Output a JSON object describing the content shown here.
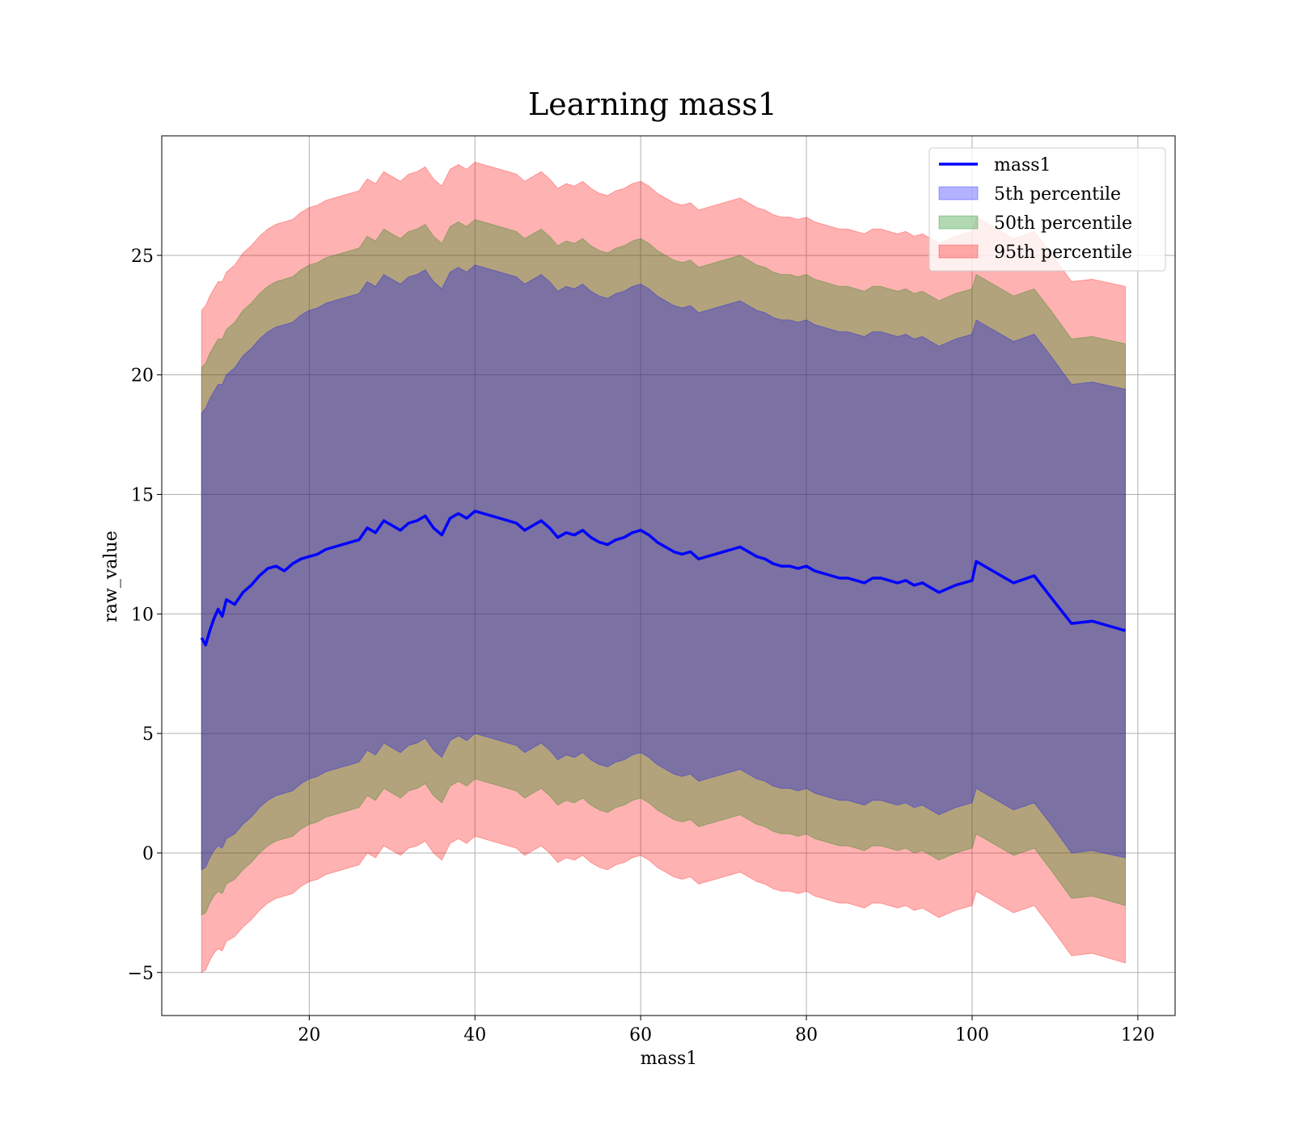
{
  "chart_data": {
    "type": "area",
    "title": "Learning mass1",
    "xlabel": "mass1",
    "ylabel": "raw_value",
    "xlim": [
      2.2,
      124.5
    ],
    "ylim": [
      -6.8,
      30.0
    ],
    "xticks": [
      20,
      40,
      60,
      80,
      100,
      120
    ],
    "xtick_labels": [
      "20",
      "40",
      "60",
      "80",
      "100",
      "120"
    ],
    "yticks": [
      -5,
      0,
      5,
      10,
      15,
      20,
      25
    ],
    "ytick_labels": [
      "−5",
      "0",
      "5",
      "10",
      "15",
      "20",
      "25"
    ],
    "grid": true,
    "legend_position": "top-right",
    "x": [
      7.0,
      7.5,
      8.0,
      8.5,
      9.0,
      9.5,
      10.0,
      11.0,
      12.0,
      13.0,
      14.0,
      15.0,
      16.0,
      17.0,
      18.0,
      19.0,
      20.0,
      21.0,
      22.0,
      23.0,
      24.0,
      25.0,
      26.0,
      27.0,
      28.0,
      29.0,
      30.0,
      31.0,
      32.0,
      33.0,
      34.0,
      35.0,
      36.0,
      37.0,
      38.0,
      39.0,
      40.0,
      41.0,
      42.0,
      43.0,
      44.0,
      45.0,
      46.0,
      47.0,
      48.0,
      49.0,
      50.0,
      51.0,
      52.0,
      53.0,
      54.0,
      55.0,
      56.0,
      57.0,
      58.0,
      59.0,
      60.0,
      61.0,
      62.0,
      63.0,
      64.0,
      65.0,
      66.0,
      67.0,
      68.0,
      69.0,
      70.0,
      71.0,
      72.0,
      73.0,
      74.0,
      75.0,
      76.0,
      77.0,
      78.0,
      79.0,
      80.0,
      81.0,
      82.0,
      83.0,
      84.0,
      85.0,
      86.0,
      87.0,
      88.0,
      89.0,
      90.0,
      91.0,
      92.0,
      93.0,
      94.0,
      96.0,
      98.0,
      100.0,
      100.5,
      102.5,
      105.0,
      107.5,
      109.5,
      112.0,
      114.5,
      118.5
    ],
    "series": [
      {
        "name": "mass1",
        "color": "#0000ff",
        "values": [
          9.0,
          8.7,
          9.3,
          9.8,
          10.2,
          9.9,
          10.6,
          10.4,
          10.9,
          11.2,
          11.6,
          11.9,
          12.0,
          11.8,
          12.1,
          12.3,
          12.4,
          12.5,
          12.7,
          12.8,
          12.9,
          13.0,
          13.1,
          13.6,
          13.4,
          13.9,
          13.7,
          13.5,
          13.8,
          13.9,
          14.1,
          13.6,
          13.3,
          14.0,
          14.2,
          14.0,
          14.3,
          14.2,
          14.1,
          14.0,
          13.9,
          13.8,
          13.5,
          13.7,
          13.9,
          13.6,
          13.2,
          13.4,
          13.3,
          13.5,
          13.2,
          13.0,
          12.9,
          13.1,
          13.2,
          13.4,
          13.5,
          13.3,
          13.0,
          12.8,
          12.6,
          12.5,
          12.6,
          12.3,
          12.4,
          12.5,
          12.6,
          12.7,
          12.8,
          12.6,
          12.4,
          12.3,
          12.1,
          12.0,
          12.0,
          11.9,
          12.0,
          11.8,
          11.7,
          11.6,
          11.5,
          11.5,
          11.4,
          11.3,
          11.5,
          11.5,
          11.4,
          11.3,
          11.4,
          11.2,
          11.3,
          10.9,
          11.2,
          11.4,
          12.2,
          11.8,
          11.3,
          11.6,
          10.7,
          9.6,
          9.7,
          9.3
        ]
      },
      {
        "name": "5th percentile",
        "color": "#0000ff",
        "lower": [
          -0.7,
          -0.6,
          -0.2,
          0.1,
          0.3,
          0.2,
          0.6,
          0.8,
          1.2,
          1.5,
          1.9,
          2.2,
          2.4,
          2.5,
          2.6,
          2.9,
          3.1,
          3.2,
          3.4,
          3.5,
          3.6,
          3.7,
          3.8,
          4.3,
          4.1,
          4.6,
          4.4,
          4.2,
          4.5,
          4.6,
          4.8,
          4.3,
          4.0,
          4.7,
          4.9,
          4.7,
          5.0,
          4.9,
          4.8,
          4.7,
          4.6,
          4.5,
          4.2,
          4.4,
          4.6,
          4.3,
          3.9,
          4.1,
          4.0,
          4.2,
          3.9,
          3.7,
          3.6,
          3.8,
          3.9,
          4.1,
          4.2,
          4.0,
          3.7,
          3.5,
          3.3,
          3.2,
          3.3,
          3.0,
          3.1,
          3.2,
          3.3,
          3.4,
          3.5,
          3.3,
          3.1,
          3.0,
          2.8,
          2.7,
          2.7,
          2.6,
          2.7,
          2.5,
          2.4,
          2.3,
          2.2,
          2.2,
          2.1,
          2.0,
          2.2,
          2.2,
          2.1,
          2.0,
          2.1,
          1.9,
          2.0,
          1.6,
          1.9,
          2.1,
          2.7,
          2.3,
          1.8,
          2.1,
          1.2,
          0.0,
          0.1,
          -0.2
        ],
        "upper": [
          18.4,
          18.6,
          19.0,
          19.3,
          19.6,
          19.6,
          20.0,
          20.3,
          20.8,
          21.1,
          21.5,
          21.8,
          22.0,
          22.1,
          22.2,
          22.5,
          22.7,
          22.8,
          23.0,
          23.1,
          23.2,
          23.3,
          23.4,
          23.9,
          23.7,
          24.2,
          24.0,
          23.8,
          24.1,
          24.2,
          24.4,
          23.9,
          23.6,
          24.3,
          24.5,
          24.3,
          24.6,
          24.5,
          24.4,
          24.3,
          24.2,
          24.1,
          23.8,
          24.0,
          24.2,
          23.9,
          23.5,
          23.7,
          23.6,
          23.8,
          23.5,
          23.3,
          23.2,
          23.4,
          23.5,
          23.7,
          23.8,
          23.6,
          23.3,
          23.1,
          22.9,
          22.8,
          22.9,
          22.6,
          22.7,
          22.8,
          22.9,
          23.0,
          23.1,
          22.9,
          22.7,
          22.6,
          22.4,
          22.3,
          22.3,
          22.2,
          22.3,
          22.1,
          22.0,
          21.9,
          21.8,
          21.8,
          21.7,
          21.6,
          21.8,
          21.8,
          21.7,
          21.6,
          21.7,
          21.5,
          21.6,
          21.2,
          21.5,
          21.7,
          22.3,
          21.9,
          21.4,
          21.7,
          20.8,
          19.6,
          19.7,
          19.4
        ]
      },
      {
        "name": "50th percentile",
        "color": "#008000",
        "lower": [
          -2.6,
          -2.5,
          -2.1,
          -1.8,
          -1.6,
          -1.7,
          -1.3,
          -1.1,
          -0.7,
          -0.4,
          0.0,
          0.3,
          0.5,
          0.6,
          0.7,
          1.0,
          1.2,
          1.3,
          1.5,
          1.6,
          1.7,
          1.8,
          1.9,
          2.4,
          2.2,
          2.7,
          2.5,
          2.3,
          2.6,
          2.7,
          2.9,
          2.4,
          2.1,
          2.8,
          3.0,
          2.8,
          3.1,
          3.0,
          2.9,
          2.8,
          2.7,
          2.6,
          2.3,
          2.5,
          2.7,
          2.4,
          2.0,
          2.2,
          2.1,
          2.3,
          2.0,
          1.8,
          1.7,
          1.9,
          2.0,
          2.2,
          2.3,
          2.1,
          1.8,
          1.6,
          1.4,
          1.3,
          1.4,
          1.1,
          1.2,
          1.3,
          1.4,
          1.5,
          1.6,
          1.4,
          1.2,
          1.1,
          0.9,
          0.8,
          0.8,
          0.7,
          0.8,
          0.6,
          0.5,
          0.4,
          0.3,
          0.3,
          0.2,
          0.1,
          0.3,
          0.3,
          0.2,
          0.1,
          0.2,
          0.0,
          0.1,
          -0.3,
          0.0,
          0.2,
          0.8,
          0.4,
          -0.1,
          0.2,
          -0.7,
          -1.9,
          -1.8,
          -2.2
        ],
        "upper": [
          20.3,
          20.5,
          20.9,
          21.2,
          21.5,
          21.5,
          21.9,
          22.2,
          22.7,
          23.0,
          23.4,
          23.7,
          23.9,
          24.0,
          24.1,
          24.4,
          24.6,
          24.7,
          24.9,
          25.0,
          25.1,
          25.2,
          25.3,
          25.8,
          25.6,
          26.1,
          25.9,
          25.7,
          26.0,
          26.1,
          26.3,
          25.8,
          25.5,
          26.2,
          26.4,
          26.2,
          26.5,
          26.4,
          26.3,
          26.2,
          26.1,
          26.0,
          25.7,
          25.9,
          26.1,
          25.8,
          25.4,
          25.6,
          25.5,
          25.7,
          25.4,
          25.2,
          25.1,
          25.3,
          25.4,
          25.6,
          25.7,
          25.5,
          25.2,
          25.0,
          24.8,
          24.7,
          24.8,
          24.5,
          24.6,
          24.7,
          24.8,
          24.9,
          25.0,
          24.8,
          24.6,
          24.5,
          24.3,
          24.2,
          24.2,
          24.1,
          24.2,
          24.0,
          23.9,
          23.8,
          23.7,
          23.7,
          23.6,
          23.5,
          23.7,
          23.7,
          23.6,
          23.5,
          23.6,
          23.4,
          23.5,
          23.1,
          23.4,
          23.6,
          24.2,
          23.8,
          23.3,
          23.6,
          22.7,
          21.5,
          21.6,
          21.3
        ]
      },
      {
        "name": "95th percentile",
        "color": "#ff0000",
        "lower": [
          -5.0,
          -4.9,
          -4.5,
          -4.2,
          -4.0,
          -4.1,
          -3.7,
          -3.5,
          -3.1,
          -2.8,
          -2.4,
          -2.1,
          -1.9,
          -1.8,
          -1.7,
          -1.4,
          -1.2,
          -1.1,
          -0.9,
          -0.8,
          -0.7,
          -0.6,
          -0.5,
          0.0,
          -0.2,
          0.3,
          0.1,
          -0.1,
          0.2,
          0.3,
          0.5,
          0.0,
          -0.3,
          0.4,
          0.6,
          0.4,
          0.7,
          0.6,
          0.5,
          0.4,
          0.3,
          0.2,
          -0.1,
          0.1,
          0.3,
          0.0,
          -0.4,
          -0.2,
          -0.3,
          -0.1,
          -0.4,
          -0.6,
          -0.7,
          -0.5,
          -0.4,
          -0.2,
          -0.1,
          -0.3,
          -0.6,
          -0.8,
          -1.0,
          -1.1,
          -1.0,
          -1.3,
          -1.2,
          -1.1,
          -1.0,
          -0.9,
          -0.8,
          -1.0,
          -1.2,
          -1.3,
          -1.5,
          -1.6,
          -1.6,
          -1.7,
          -1.6,
          -1.8,
          -1.9,
          -2.0,
          -2.1,
          -2.1,
          -2.2,
          -2.3,
          -2.1,
          -2.1,
          -2.2,
          -2.3,
          -2.2,
          -2.4,
          -2.3,
          -2.7,
          -2.4,
          -2.2,
          -1.6,
          -2.0,
          -2.5,
          -2.2,
          -3.1,
          -4.3,
          -4.2,
          -4.6
        ],
        "upper": [
          22.7,
          22.9,
          23.3,
          23.6,
          23.9,
          23.9,
          24.3,
          24.6,
          25.1,
          25.4,
          25.8,
          26.1,
          26.3,
          26.4,
          26.5,
          26.8,
          27.0,
          27.1,
          27.3,
          27.4,
          27.5,
          27.6,
          27.7,
          28.2,
          28.0,
          28.5,
          28.3,
          28.1,
          28.4,
          28.5,
          28.7,
          28.2,
          27.9,
          28.6,
          28.8,
          28.6,
          28.9,
          28.8,
          28.7,
          28.6,
          28.5,
          28.4,
          28.1,
          28.3,
          28.5,
          28.2,
          27.8,
          28.0,
          27.9,
          28.1,
          27.8,
          27.6,
          27.5,
          27.7,
          27.8,
          28.0,
          28.1,
          27.9,
          27.6,
          27.4,
          27.2,
          27.1,
          27.2,
          26.9,
          27.0,
          27.1,
          27.2,
          27.3,
          27.4,
          27.2,
          27.0,
          26.9,
          26.7,
          26.6,
          26.6,
          26.5,
          26.6,
          26.4,
          26.3,
          26.2,
          26.1,
          26.1,
          26.0,
          25.9,
          26.1,
          26.1,
          26.0,
          25.9,
          26.0,
          25.8,
          25.9,
          25.5,
          25.8,
          26.0,
          26.6,
          26.2,
          25.7,
          26.0,
          25.1,
          23.9,
          24.0,
          23.7
        ]
      }
    ]
  }
}
